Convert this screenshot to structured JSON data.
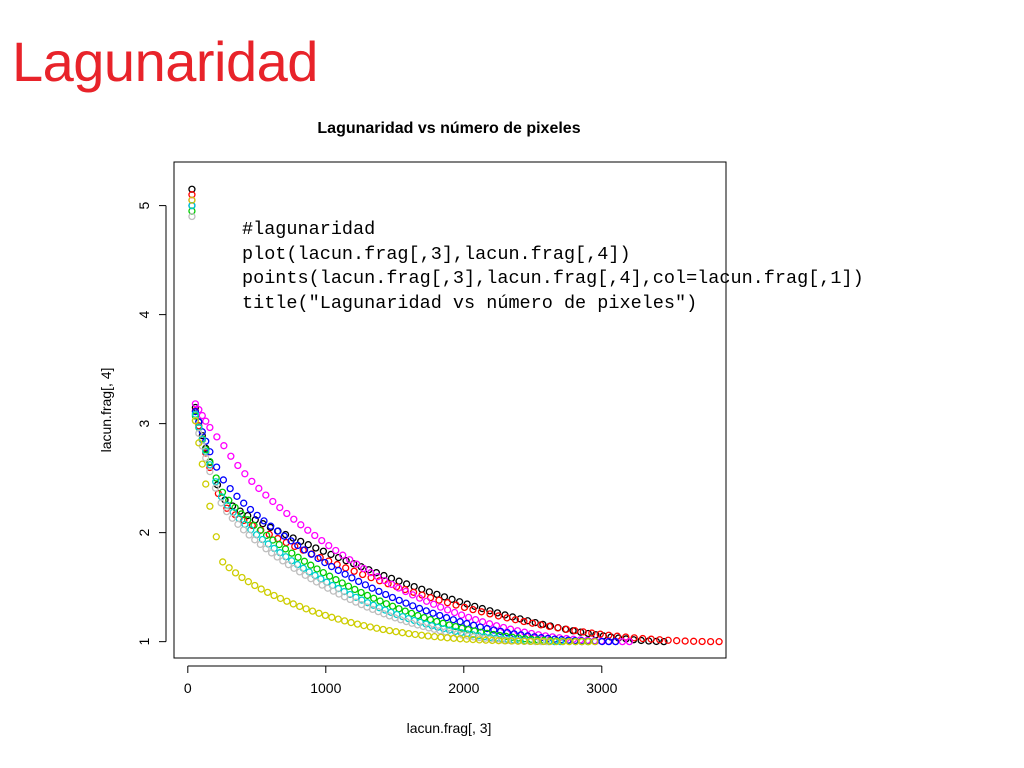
{
  "slide": {
    "title": "Lagunaridad"
  },
  "code": {
    "lines": [
      "#lagunaridad",
      "plot(lacun.frag[,3],lacun.frag[,4])",
      "points(lacun.frag[,3],lacun.frag[,4],col=lacun.frag[,1])",
      "title(\"Lagunaridad vs número de pixeles\")"
    ]
  },
  "chart_data": {
    "type": "scatter",
    "title": "Lagunaridad vs número de pixeles",
    "xlabel": "lacun.frag[, 3]",
    "ylabel": "lacun.frag[, 4]",
    "xlim": [
      -100,
      3900
    ],
    "ylim": [
      0.85,
      5.4
    ],
    "xticks": [
      0,
      1000,
      2000,
      3000
    ],
    "yticks": [
      1,
      2,
      3,
      4,
      5
    ],
    "grid": false,
    "legend": "none",
    "marker": "open-circle",
    "series": [
      {
        "color": "#000000",
        "x_max": 3450,
        "y0": 5.15,
        "y_at_1000": 1.82,
        "shape": "late-steep"
      },
      {
        "color": "#ff0000",
        "x_max": 3850,
        "y0": 5.1,
        "y_at_1000": 1.75,
        "shape": "long-tail"
      },
      {
        "color": "#ff00ff",
        "x_max": 3200,
        "y0": 5.05,
        "y_at_1000": 1.9,
        "shape": "standard"
      },
      {
        "color": "#0000ff",
        "x_max": 3100,
        "y0": 5.0,
        "y_at_1000": 1.72,
        "shape": "standard"
      },
      {
        "color": "#00cd00",
        "x_max": 2900,
        "y0": 4.95,
        "y_at_1000": 1.62,
        "shape": "standard"
      },
      {
        "color": "#00cdcd",
        "x_max": 2700,
        "y0": 5.0,
        "y_at_1000": 1.55,
        "shape": "standard"
      },
      {
        "color": "#bebebe",
        "x_max": 2600,
        "y0": 4.9,
        "y_at_1000": 1.5,
        "shape": "standard"
      },
      {
        "color": "#cdcd00",
        "x_max": 2950,
        "y0": 5.05,
        "y_at_1000": 1.24,
        "shape": "fast-drop"
      }
    ]
  }
}
